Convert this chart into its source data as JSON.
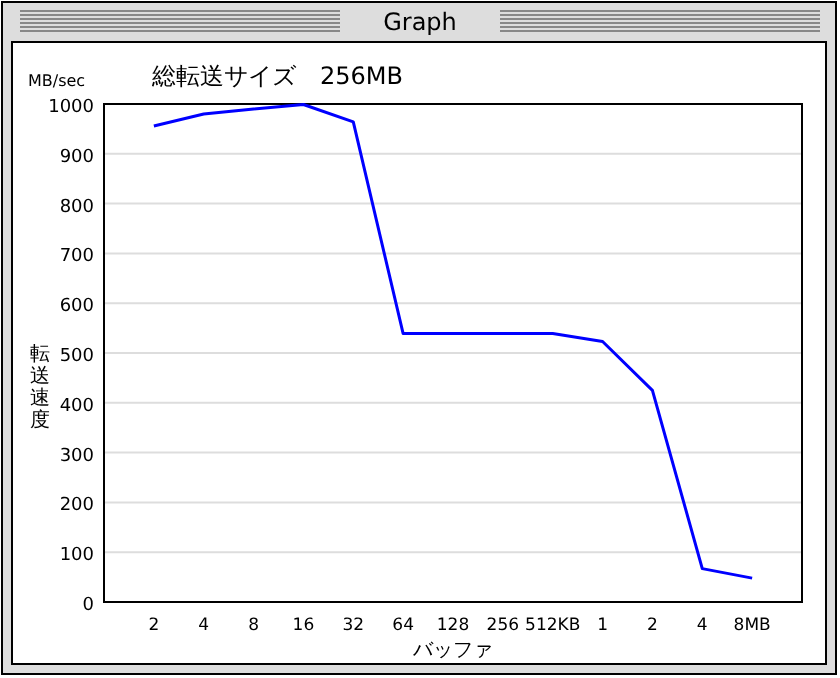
{
  "chart_data": {
    "type": "line",
    "title": "総転送サイズ　256MB",
    "xlabel": "バッファ",
    "ylabel": "転送速度",
    "annotations": [
      "Graph",
      "MB/sec"
    ],
    "categories": [
      "2",
      "4",
      "8",
      "16",
      "32",
      "64",
      "128",
      "256",
      "512KB",
      "1",
      "2",
      "4",
      "8MB"
    ],
    "series": [
      {
        "color": "#0000ff",
        "values": [
          956,
          980,
          990,
          999,
          964,
          539,
          539,
          539,
          539,
          523,
          425,
          67,
          48
        ]
      }
    ],
    "ylim": [
      0,
      1000
    ],
    "yticks": [
      0,
      100,
      200,
      300,
      400,
      500,
      600,
      700,
      800,
      900,
      1000
    ],
    "grid": "y"
  }
}
